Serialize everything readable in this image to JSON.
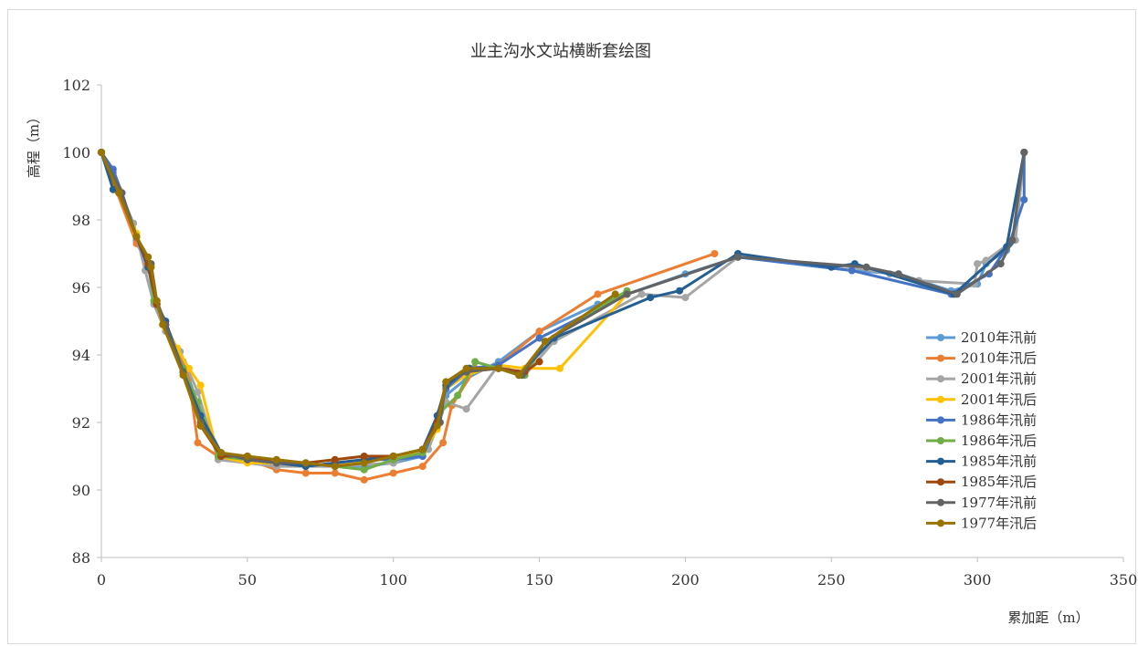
{
  "chart_data": {
    "type": "line",
    "title": "业主沟水文站横断套绘图",
    "xlabel": "累加距（m）",
    "ylabel": "高程（m）",
    "xlim": [
      0,
      350
    ],
    "ylim": [
      88,
      102
    ],
    "x_ticks": [
      "0",
      "50",
      "100",
      "150",
      "200",
      "250",
      "300",
      "350"
    ],
    "y_ticks": [
      "88",
      "90",
      "92",
      "94",
      "96",
      "98",
      "100",
      "102"
    ],
    "grid": false,
    "legend_position": "right",
    "series": [
      {
        "name": "2010年汛前",
        "color": "#5B9BD5",
        "points": [
          [
            0,
            100
          ],
          [
            4,
            99.4
          ],
          [
            7,
            98.8
          ],
          [
            12,
            97.4
          ],
          [
            16,
            96.6
          ],
          [
            19,
            95.6
          ],
          [
            22,
            94.9
          ],
          [
            28,
            93.8
          ],
          [
            34,
            92.3
          ],
          [
            41,
            91.1
          ],
          [
            50,
            90.9
          ],
          [
            60,
            90.8
          ],
          [
            70,
            90.8
          ],
          [
            80,
            90.7
          ],
          [
            90,
            90.7
          ],
          [
            100,
            90.8
          ],
          [
            110,
            91.0
          ],
          [
            115,
            91.9
          ],
          [
            118,
            92.8
          ],
          [
            125,
            93.3
          ],
          [
            136,
            93.8
          ],
          [
            150,
            94.7
          ],
          [
            170,
            95.5
          ],
          [
            200,
            96.4
          ],
          [
            218,
            96.9
          ],
          [
            257,
            96.5
          ],
          [
            273,
            96.4
          ],
          [
            291,
            95.9
          ],
          [
            300,
            96.1
          ],
          [
            303,
            96.7
          ],
          [
            310,
            97.1
          ],
          [
            313,
            97.4
          ],
          [
            316,
            100.0
          ]
        ]
      },
      {
        "name": "2010年汛后",
        "color": "#ED7D31",
        "points": [
          [
            0,
            100
          ],
          [
            5,
            98.9
          ],
          [
            12,
            97.3
          ],
          [
            17,
            96.6
          ],
          [
            19,
            95.5
          ],
          [
            22,
            94.9
          ],
          [
            26,
            94.1
          ],
          [
            30,
            93.3
          ],
          [
            33,
            91.4
          ],
          [
            40,
            91.0
          ],
          [
            50,
            90.9
          ],
          [
            60,
            90.6
          ],
          [
            70,
            90.5
          ],
          [
            80,
            90.5
          ],
          [
            90,
            90.3
          ],
          [
            100,
            90.5
          ],
          [
            110,
            90.7
          ],
          [
            117,
            91.4
          ],
          [
            120,
            92.5
          ],
          [
            128,
            93.6
          ],
          [
            136,
            93.7
          ],
          [
            150,
            94.7
          ],
          [
            170,
            95.8
          ],
          [
            210,
            97.0
          ]
        ]
      },
      {
        "name": "2001年汛前",
        "color": "#A5A5A5",
        "points": [
          [
            0,
            100
          ],
          [
            6,
            98.9
          ],
          [
            11,
            97.9
          ],
          [
            15,
            96.5
          ],
          [
            18,
            95.5
          ],
          [
            22,
            94.7
          ],
          [
            27,
            94.1
          ],
          [
            33,
            92.9
          ],
          [
            40,
            90.9
          ],
          [
            60,
            90.7
          ],
          [
            80,
            90.7
          ],
          [
            100,
            90.8
          ],
          [
            112,
            91.2
          ],
          [
            118,
            92.6
          ],
          [
            125,
            92.4
          ],
          [
            136,
            93.7
          ],
          [
            145,
            93.4
          ],
          [
            155,
            94.4
          ],
          [
            185,
            95.8
          ],
          [
            200,
            95.7
          ],
          [
            218,
            96.9
          ],
          [
            257,
            96.6
          ],
          [
            270,
            96.4
          ],
          [
            280,
            96.2
          ],
          [
            299,
            96.1
          ],
          [
            300,
            96.7
          ],
          [
            303,
            96.8
          ],
          [
            311,
            97.3
          ],
          [
            313,
            97.4
          ],
          [
            316,
            100.0
          ]
        ]
      },
      {
        "name": "2001年汛后",
        "color": "#FFC000",
        "points": [
          [
            0,
            100
          ],
          [
            6,
            98.9
          ],
          [
            12,
            97.6
          ],
          [
            16,
            96.6
          ],
          [
            19,
            95.5
          ],
          [
            22,
            94.8
          ],
          [
            26,
            94.2
          ],
          [
            30,
            93.6
          ],
          [
            34,
            93.1
          ],
          [
            40,
            91.0
          ],
          [
            50,
            90.8
          ],
          [
            60,
            90.8
          ],
          [
            70,
            90.7
          ],
          [
            80,
            90.8
          ],
          [
            90,
            90.8
          ],
          [
            100,
            91.0
          ],
          [
            110,
            91.1
          ],
          [
            115,
            91.8
          ],
          [
            118,
            93.0
          ],
          [
            125,
            93.4
          ],
          [
            136,
            93.7
          ],
          [
            145,
            93.6
          ],
          [
            157,
            93.6
          ],
          [
            180,
            95.8
          ]
        ]
      },
      {
        "name": "1986年汛前",
        "color": "#4472C4",
        "points": [
          [
            0,
            100
          ],
          [
            4,
            99.5
          ],
          [
            7,
            98.8
          ],
          [
            12,
            97.5
          ],
          [
            16,
            96.6
          ],
          [
            19,
            95.5
          ],
          [
            22,
            94.9
          ],
          [
            28,
            93.5
          ],
          [
            34,
            92.2
          ],
          [
            41,
            91.1
          ],
          [
            50,
            90.9
          ],
          [
            60,
            90.8
          ],
          [
            70,
            90.7
          ],
          [
            80,
            90.8
          ],
          [
            90,
            90.9
          ],
          [
            100,
            90.9
          ],
          [
            110,
            91.0
          ],
          [
            115,
            92.0
          ],
          [
            118,
            93.0
          ],
          [
            126,
            93.6
          ],
          [
            136,
            93.7
          ],
          [
            150,
            94.5
          ],
          [
            180,
            95.8
          ],
          [
            218,
            96.9
          ],
          [
            257,
            96.5
          ],
          [
            291,
            95.8
          ],
          [
            304,
            96.4
          ],
          [
            311,
            97.3
          ],
          [
            316,
            98.6
          ],
          [
            316,
            100.0
          ]
        ]
      },
      {
        "name": "1986年汛后",
        "color": "#70AD47",
        "points": [
          [
            0,
            100
          ],
          [
            6,
            98.8
          ],
          [
            12,
            97.5
          ],
          [
            16,
            96.7
          ],
          [
            18,
            95.6
          ],
          [
            22,
            94.9
          ],
          [
            28,
            93.6
          ],
          [
            33,
            92.6
          ],
          [
            40,
            91.0
          ],
          [
            50,
            90.9
          ],
          [
            60,
            90.8
          ],
          [
            70,
            90.8
          ],
          [
            80,
            90.7
          ],
          [
            90,
            90.6
          ],
          [
            100,
            90.9
          ],
          [
            110,
            91.1
          ],
          [
            116,
            92.3
          ],
          [
            122,
            92.8
          ],
          [
            128,
            93.8
          ],
          [
            136,
            93.6
          ],
          [
            145,
            93.4
          ],
          [
            152,
            94.4
          ],
          [
            180,
            95.9
          ]
        ]
      },
      {
        "name": "1985年汛前",
        "color": "#255E91",
        "points": [
          [
            0,
            100
          ],
          [
            4,
            98.9
          ],
          [
            7,
            98.8
          ],
          [
            12,
            97.5
          ],
          [
            16,
            96.6
          ],
          [
            19,
            95.5
          ],
          [
            22,
            95.0
          ],
          [
            28,
            93.5
          ],
          [
            34,
            92.2
          ],
          [
            41,
            91.1
          ],
          [
            50,
            90.9
          ],
          [
            60,
            90.8
          ],
          [
            70,
            90.7
          ],
          [
            80,
            90.8
          ],
          [
            90,
            90.9
          ],
          [
            100,
            91.0
          ],
          [
            110,
            91.2
          ],
          [
            115,
            92.2
          ],
          [
            118,
            93.1
          ],
          [
            126,
            93.6
          ],
          [
            136,
            93.6
          ],
          [
            143,
            93.4
          ],
          [
            155,
            94.5
          ],
          [
            188,
            95.7
          ],
          [
            198,
            95.9
          ],
          [
            218,
            97.0
          ],
          [
            250,
            96.6
          ],
          [
            258,
            96.7
          ],
          [
            292,
            95.8
          ],
          [
            310,
            97.2
          ],
          [
            316,
            100.0
          ]
        ]
      },
      {
        "name": "1985年汛后",
        "color": "#9E480E",
        "points": [
          [
            0,
            100
          ],
          [
            6,
            98.8
          ],
          [
            12,
            97.5
          ],
          [
            16,
            96.7
          ],
          [
            19,
            95.5
          ],
          [
            22,
            94.9
          ],
          [
            28,
            93.5
          ],
          [
            34,
            91.9
          ],
          [
            41,
            91.0
          ],
          [
            50,
            91.0
          ],
          [
            60,
            90.8
          ],
          [
            70,
            90.8
          ],
          [
            80,
            90.9
          ],
          [
            90,
            91.0
          ],
          [
            100,
            91.0
          ],
          [
            110,
            91.2
          ],
          [
            115,
            92.0
          ],
          [
            118,
            93.2
          ],
          [
            125,
            93.5
          ],
          [
            136,
            93.6
          ],
          [
            145,
            93.5
          ],
          [
            150,
            93.8
          ]
        ]
      },
      {
        "name": "1977年汛前",
        "color": "#636363",
        "points": [
          [
            0,
            100
          ],
          [
            7,
            98.8
          ],
          [
            12,
            97.5
          ],
          [
            17,
            96.7
          ],
          [
            19,
            95.6
          ],
          [
            22,
            94.9
          ],
          [
            28,
            93.5
          ],
          [
            34,
            92.0
          ],
          [
            41,
            91.1
          ],
          [
            50,
            90.9
          ],
          [
            60,
            90.8
          ],
          [
            70,
            90.8
          ],
          [
            80,
            90.7
          ],
          [
            90,
            90.8
          ],
          [
            100,
            91.0
          ],
          [
            110,
            91.2
          ],
          [
            116,
            92.0
          ],
          [
            118,
            93.2
          ],
          [
            125,
            93.5
          ],
          [
            136,
            93.6
          ],
          [
            144,
            93.4
          ],
          [
            152,
            94.4
          ],
          [
            180,
            95.8
          ],
          [
            218,
            96.9
          ],
          [
            262,
            96.6
          ],
          [
            273,
            96.4
          ],
          [
            293,
            95.8
          ],
          [
            308,
            96.7
          ],
          [
            312,
            97.4
          ],
          [
            316,
            100.0
          ]
        ]
      },
      {
        "name": "1977年汛后",
        "color": "#997300",
        "points": [
          [
            0,
            100
          ],
          [
            6,
            98.8
          ],
          [
            12,
            97.5
          ],
          [
            16,
            96.9
          ],
          [
            17,
            96.6
          ],
          [
            19,
            95.6
          ],
          [
            21,
            94.9
          ],
          [
            28,
            93.4
          ],
          [
            34,
            91.9
          ],
          [
            41,
            91.1
          ],
          [
            50,
            91.0
          ],
          [
            60,
            90.9
          ],
          [
            70,
            90.8
          ],
          [
            80,
            90.7
          ],
          [
            90,
            90.8
          ],
          [
            100,
            91.0
          ],
          [
            110,
            91.2
          ],
          [
            115,
            91.9
          ],
          [
            118,
            93.2
          ],
          [
            125,
            93.6
          ],
          [
            136,
            93.6
          ],
          [
            143,
            93.4
          ],
          [
            152,
            94.4
          ],
          [
            176,
            95.8
          ]
        ]
      }
    ]
  }
}
